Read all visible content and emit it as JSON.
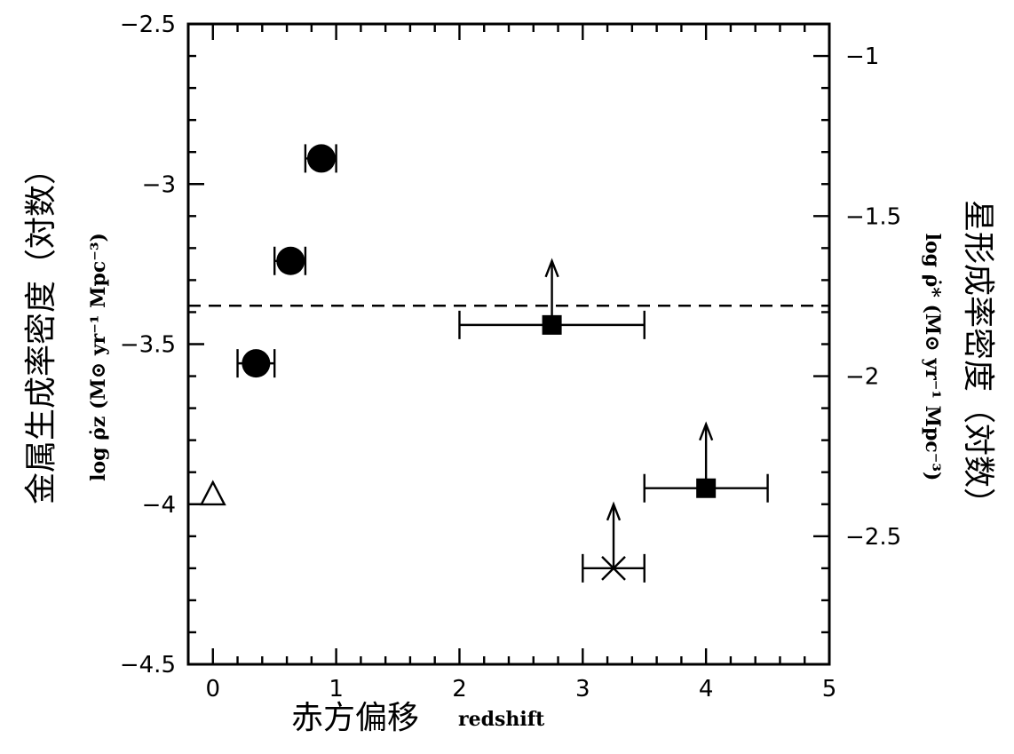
{
  "chart_data": {
    "type": "scatter",
    "xlabel": "redshift",
    "xlabel_cn": "赤方偏移",
    "ylabel_left": "log ρ̇z (M⊙ yr⁻¹ Mpc⁻³)",
    "ylabel_left_cn": "金属生成率密度（対数）",
    "ylabel_right": "log ρ̇* (M⊙ yr⁻¹ Mpc⁻³)",
    "ylabel_right_cn": "星形成率密度（対数）",
    "xlim": [
      -0.2,
      5
    ],
    "ylim_left": [
      -4.5,
      -2.5
    ],
    "ylim_right": [
      -2.9,
      -0.9
    ],
    "x_ticks": [
      0,
      1,
      2,
      3,
      4,
      5
    ],
    "y_ticks_left": [
      -4.5,
      -4,
      -3.5,
      -3,
      -2.5
    ],
    "y_ticks_right": [
      -2.5,
      -2,
      -1.5,
      -1
    ],
    "x_tick_labels": [
      "0",
      "1",
      "2",
      "3",
      "4",
      "5"
    ],
    "y_tick_labels_left": [
      "−4.5",
      "−4",
      "−3.5",
      "−3",
      "−2.5"
    ],
    "y_tick_labels_right": [
      "−2.5",
      "−2",
      "−1.5",
      "−1"
    ],
    "reference_line": {
      "y": -3.38,
      "style": "dashed"
    },
    "series": [
      {
        "marker": "filled-circle",
        "points": [
          {
            "x": 0.35,
            "y": -3.56,
            "xerr": [
              0.2,
              0.5
            ]
          },
          {
            "x": 0.63,
            "y": -3.24,
            "xerr": [
              0.5,
              0.75
            ]
          },
          {
            "x": 0.88,
            "y": -2.92,
            "xerr": [
              0.75,
              1.0
            ]
          }
        ]
      },
      {
        "marker": "open-triangle",
        "points": [
          {
            "x": 0.0,
            "y": -3.97
          }
        ]
      },
      {
        "marker": "filled-square",
        "lower_limit": true,
        "points": [
          {
            "x": 2.75,
            "y": -3.44,
            "xerr": [
              2.0,
              3.5
            ]
          },
          {
            "x": 4.0,
            "y": -3.95,
            "xerr": [
              3.5,
              4.5
            ]
          }
        ]
      },
      {
        "marker": "cross",
        "lower_limit": true,
        "points": [
          {
            "x": 3.25,
            "y": -4.2,
            "xerr": [
              3.0,
              3.5
            ]
          }
        ]
      }
    ]
  }
}
